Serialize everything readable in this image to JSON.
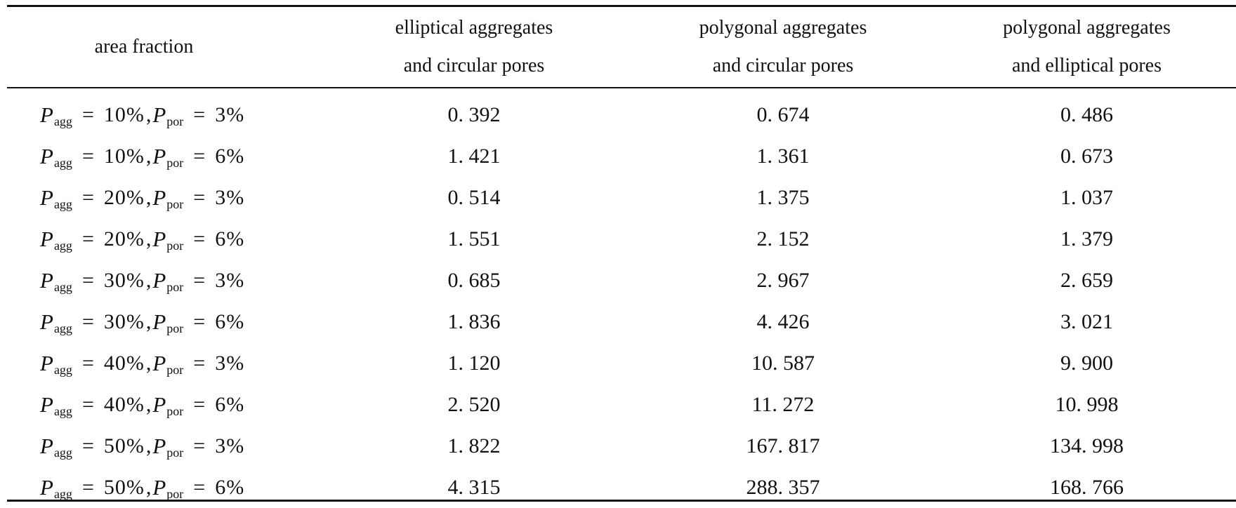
{
  "table": {
    "headers": [
      [
        "area fraction"
      ],
      [
        "elliptical aggregates",
        "and circular pores"
      ],
      [
        "polygonal aggregates",
        "and circular pores"
      ],
      [
        "polygonal aggregates",
        "and elliptical pores"
      ]
    ],
    "symbols": {
      "var": "P",
      "agg_sub": "agg",
      "por_sub": "por",
      "eq": "=",
      "sep": ","
    },
    "rows": [
      {
        "agg": "10%",
        "por": "3%",
        "values": [
          "0. 392",
          "0. 674",
          "0. 486"
        ]
      },
      {
        "agg": "10%",
        "por": "6%",
        "values": [
          "1. 421",
          "1. 361",
          "0. 673"
        ]
      },
      {
        "agg": "20%",
        "por": "3%",
        "values": [
          "0. 514",
          "1. 375",
          "1. 037"
        ]
      },
      {
        "agg": "20%",
        "por": "6%",
        "values": [
          "1. 551",
          "2. 152",
          "1. 379"
        ]
      },
      {
        "agg": "30%",
        "por": "3%",
        "values": [
          "0. 685",
          "2. 967",
          "2. 659"
        ]
      },
      {
        "agg": "30%",
        "por": "6%",
        "values": [
          "1. 836",
          "4. 426",
          "3. 021"
        ]
      },
      {
        "agg": "40%",
        "por": "3%",
        "values": [
          "1. 120",
          "10. 587",
          "9. 900"
        ]
      },
      {
        "agg": "40%",
        "por": "6%",
        "values": [
          "2. 520",
          "11. 272",
          "10. 998"
        ]
      },
      {
        "agg": "50%",
        "por": "3%",
        "values": [
          "1. 822",
          "167. 817",
          "134. 998"
        ]
      },
      {
        "agg": "50%",
        "por": "6%",
        "values": [
          "4. 315",
          "288. 357",
          "168. 766"
        ]
      }
    ]
  }
}
